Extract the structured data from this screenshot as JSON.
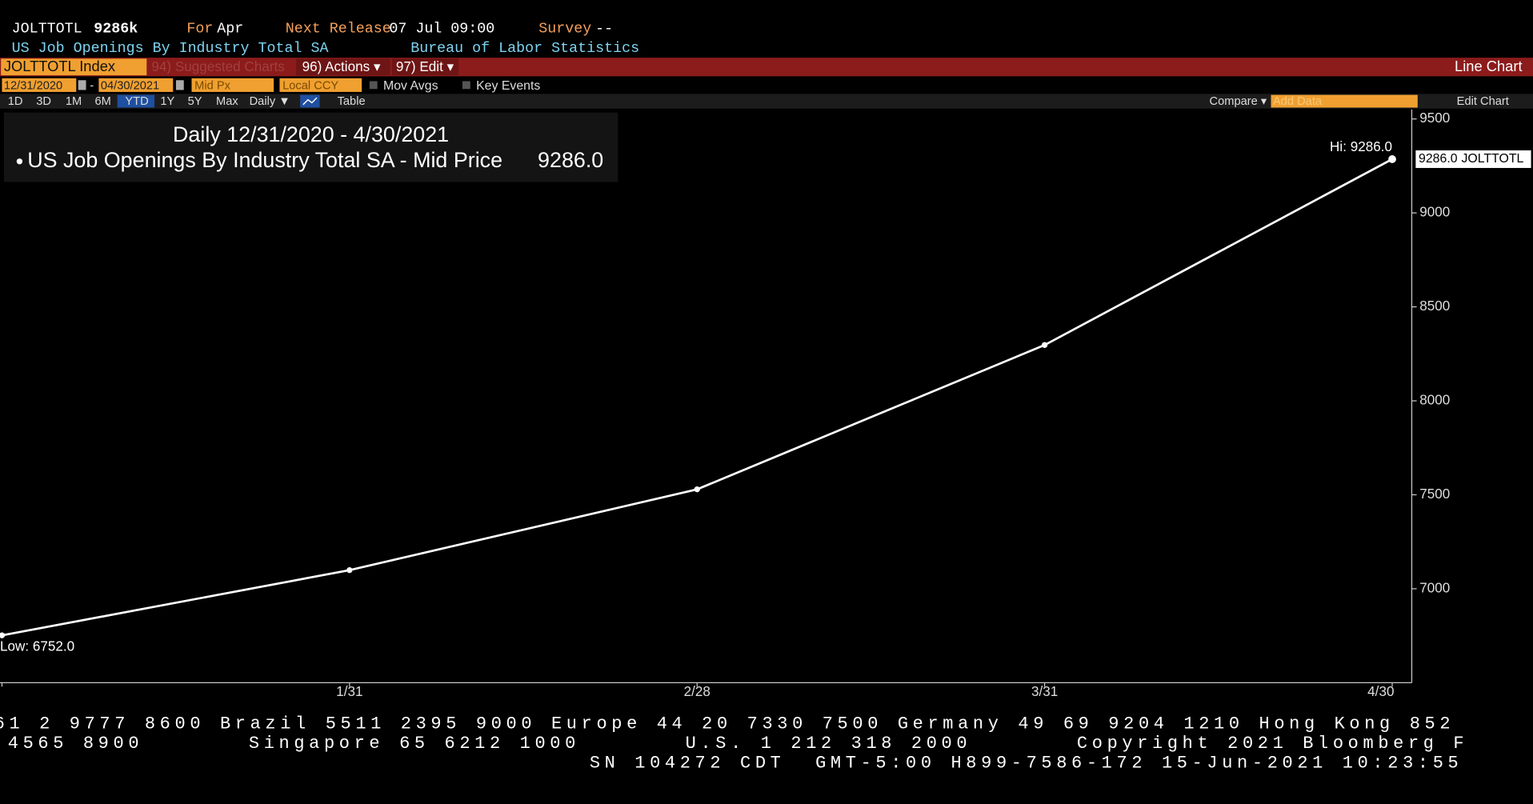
{
  "header": {
    "ticker": "JOLTTOTL",
    "value": "9286k",
    "for_label": "For",
    "for_value": "Apr",
    "next_label": "Next Release",
    "next_value": "07 Jul 09:00",
    "survey_label": "Survey",
    "survey_value": "--",
    "name": "US Job Openings By Industry Total SA",
    "source": "Bureau of Labor Statistics"
  },
  "toolbar": {
    "security": "JOLTTOTL Index",
    "suggested": "94) Suggested Charts",
    "actions": "96) Actions ▾",
    "edit": "97) Edit ▾",
    "chart_kind": "Line Chart"
  },
  "controls": {
    "start": "12/31/2020",
    "dash": "-",
    "end": "04/30/2021",
    "field": "Mid Px",
    "currency": "Local CCY",
    "mov_avgs": "Mov Avgs",
    "key_events": "Key Events"
  },
  "periods": {
    "items": [
      "1D",
      "3D",
      "1M",
      "6M",
      "YTD",
      "1Y",
      "5Y",
      "Max"
    ],
    "frequency": "Daily ▼",
    "table": "Table",
    "compare": "Compare ▾",
    "add_data": "Add Data",
    "edit_chart": "Edit Chart"
  },
  "chart_data": {
    "type": "line",
    "title": "Daily 12/31/2020 - 4/30/2021",
    "legend_text": "US Job Openings By Industry Total SA - Mid Price",
    "categories": [
      null,
      "1/31",
      "2/28",
      "3/31",
      "4/30"
    ],
    "series": [
      {
        "name": "JOLTTOTL",
        "color": "#ffffff",
        "values": [
          6752,
          7099,
          7529,
          8297,
          9286
        ],
        "value_labels": [
          null,
          null,
          null,
          null,
          "9286.0"
        ]
      }
    ],
    "hi_label": "Hi: 9286.0",
    "low_label": "Low: 6752.0",
    "ylim": [
      6500,
      9550
    ],
    "yticks": [
      7000,
      7500,
      8000,
      8500,
      9000,
      9500
    ],
    "grid": false
  },
  "footer": {
    "line1": "61 2 9777 8600 Brazil 5511 2395 9000 Europe 44 20 7330 7500 Germany 49 69 9204 1210 Hong Kong 852",
    "line2": "4565 8900       Singapore 65 6212 1000       U.S. 1 212 318 2000       Copyright 2021 Bloomberg F",
    "line3": "SN 104272 CDT  GMT-5:00 H899-7586-172 15-Jun-2021 10:23:55"
  }
}
